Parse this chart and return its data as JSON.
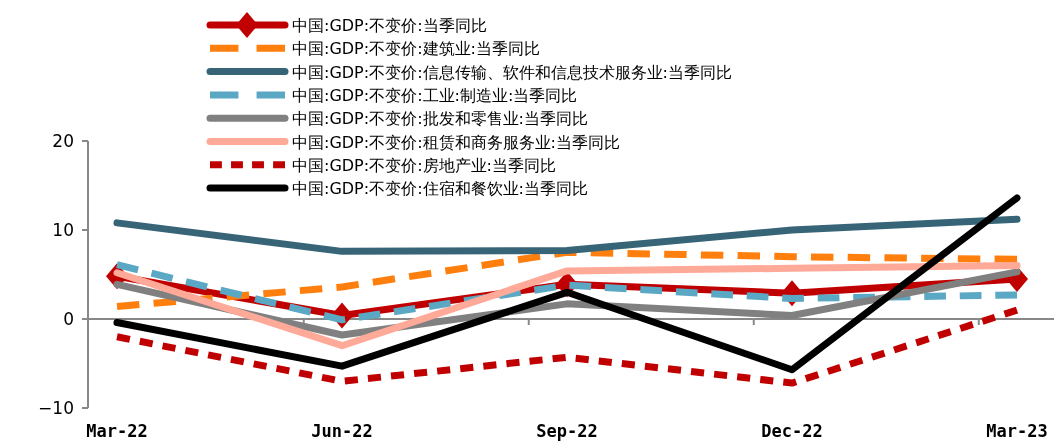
{
  "chart_data": {
    "type": "line",
    "categories": [
      "Mar-22",
      "Jun-22",
      "Sep-22",
      "Dec-22",
      "Mar-23"
    ],
    "ylim": [
      -10,
      20
    ],
    "yticks": [
      -10,
      0,
      10,
      20
    ],
    "legend": "top",
    "series": [
      {
        "name": "中国:GDP:不变价:当季同比",
        "color": "#c00000",
        "line_style": "solid",
        "marker": "diamond",
        "values": [
          4.8,
          0.4,
          3.9,
          2.9,
          4.5
        ]
      },
      {
        "name": "中国:GDP:不变价:建筑业:当季同比",
        "color": "#ff7f0e",
        "line_style": "dashed",
        "values": [
          1.4,
          3.6,
          7.5,
          7.0,
          6.7
        ]
      },
      {
        "name": "中国:GDP:不变价:信息传输、软件和信息技术服务业:当季同比",
        "color": "#376577",
        "line_style": "solid",
        "values": [
          10.8,
          7.6,
          7.7,
          10.0,
          11.2
        ]
      },
      {
        "name": "中国:GDP:不变价:工业:制造业:当季同比",
        "color": "#5ba8c4",
        "line_style": "dashed",
        "values": [
          6.1,
          -0.1,
          3.8,
          2.3,
          2.7
        ]
      },
      {
        "name": "中国:GDP:不变价:批发和零售业:当季同比",
        "color": "#808080",
        "line_style": "solid",
        "values": [
          3.9,
          -1.8,
          1.7,
          0.4,
          5.3
        ]
      },
      {
        "name": "中国:GDP:不变价:租赁和商务服务业:当季同比",
        "color": "#ffaa99",
        "line_style": "solid",
        "values": [
          5.2,
          -3.0,
          5.4,
          5.7,
          6.0
        ]
      },
      {
        "name": "中国:GDP:不变价:房地产业:当季同比",
        "color": "#c00000",
        "line_style": "dotted",
        "values": [
          -2.0,
          -7.0,
          -4.3,
          -7.2,
          1.0
        ]
      },
      {
        "name": "中国:GDP:不变价:住宿和餐饮业:当季同比",
        "color": "#000000",
        "line_style": "solid",
        "values": [
          -0.4,
          -5.3,
          3.0,
          -5.7,
          13.6
        ]
      }
    ]
  }
}
